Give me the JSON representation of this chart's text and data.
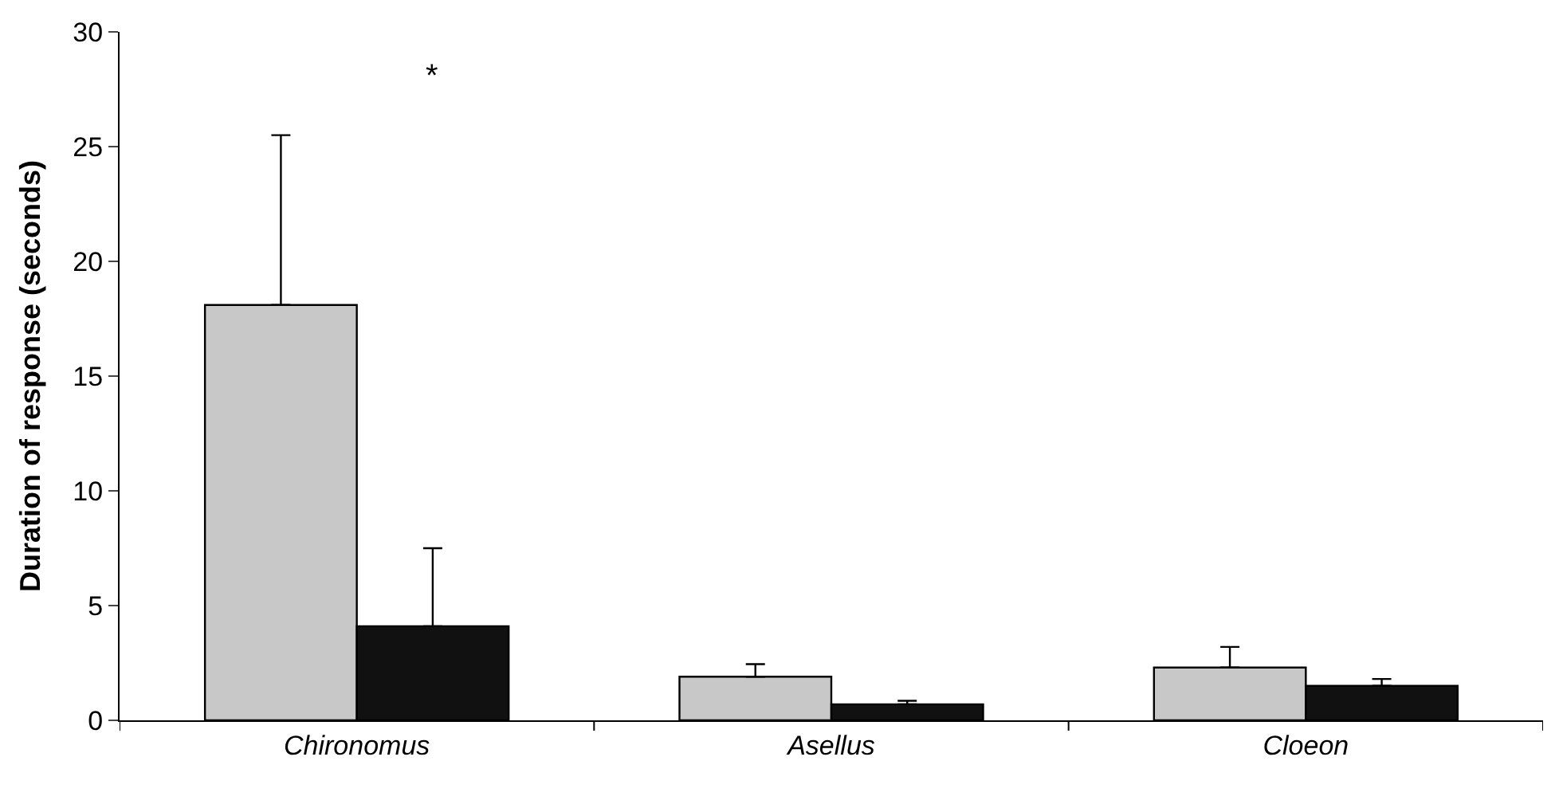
{
  "chart_data": {
    "type": "bar",
    "ylabel": "Duration of response (seconds)",
    "categories": [
      "Chironomus",
      "Asellus",
      "Cloeon"
    ],
    "series": [
      {
        "color": "#c8c8c8",
        "values": [
          18.1,
          1.9,
          2.3
        ],
        "errors": [
          [
            18.1,
            25.5
          ],
          [
            1.9,
            2.45
          ],
          [
            2.3,
            3.2
          ]
        ]
      },
      {
        "color": "#111111",
        "values": [
          4.1,
          0.7,
          1.5
        ],
        "errors": [
          [
            4.1,
            7.5
          ],
          [
            0.7,
            0.85
          ],
          [
            1.5,
            1.8
          ]
        ]
      }
    ],
    "annotations": [
      "*"
    ],
    "ylim": [
      0,
      30
    ],
    "yticks": [
      0,
      5,
      10,
      15,
      20,
      25,
      30
    ]
  }
}
